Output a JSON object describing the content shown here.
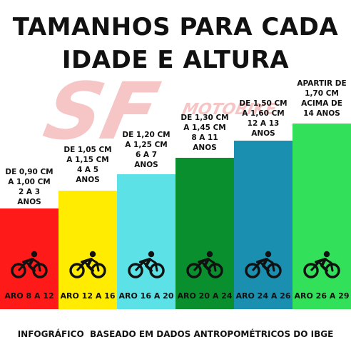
{
  "title": {
    "line1": "TAMANHOS PARA CADA",
    "line2": "IDADE E ALTURA"
  },
  "watermark": {
    "text": "MOTOBIKE",
    "letters": "SF"
  },
  "columns": [
    {
      "lines": [
        "DE 0,90 CM",
        "A 1,00 CM",
        "2 A 3",
        "ANOS"
      ],
      "aro": "ARO 8 A 12",
      "color": "#ff1a1a",
      "icon": "cyclist-icon"
    },
    {
      "lines": [
        "DE 1,05 CM",
        "A 1,15 CM",
        "4 A 5",
        "ANOS"
      ],
      "aro": "ARO 12 A 16",
      "color": "#ffec00",
      "icon": "cyclist-icon"
    },
    {
      "lines": [
        "DE 1,20 CM",
        "A 1,25 CM",
        "6 A 7",
        "ANOS"
      ],
      "aro": "ARO 16 A 20",
      "color": "#5ce1e6",
      "icon": "cyclist-icon"
    },
    {
      "lines": [
        "DE 1,30 CM",
        "A 1,45 CM",
        "8 A 11",
        "ANOS"
      ],
      "aro": "ARO 20 A 24",
      "color": "#0a8f2e",
      "icon": "cyclist-icon"
    },
    {
      "lines": [
        "DE 1,50 CM",
        "A 1,60 CM",
        "12 A 13",
        "ANOS"
      ],
      "aro": "ARO 24 A 26",
      "color": "#1a8fb0",
      "icon": "cyclist-icon"
    },
    {
      "lines": [
        "APARTIR DE",
        "1,70 CM",
        "ACIMA DE",
        "14 ANOS"
      ],
      "aro": "ARO 26 A 29",
      "color": "#33e05a",
      "icon": "cyclist-icon"
    }
  ],
  "footer": "INFOGRÁFICO  BASEADO EM DADOS ANTROPOMÉTRICOS DO IBGE"
}
